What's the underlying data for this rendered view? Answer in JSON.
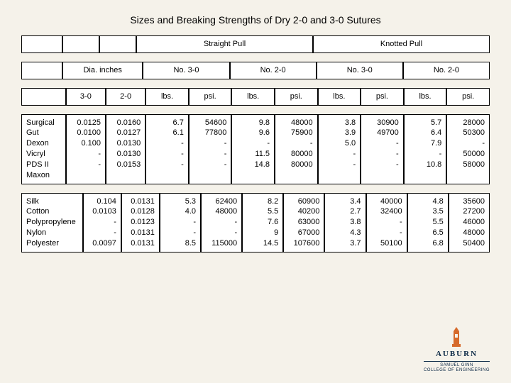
{
  "title": "Sizes and Breaking Strengths of Dry 2-0 and 3-0 Sutures",
  "headers": {
    "straight": "Straight Pull",
    "knotted": "Knotted Pull",
    "dia": "Dia. inches",
    "n30": "No. 3-0",
    "n20": "No. 2-0",
    "d30": "3-0",
    "d20": "2-0",
    "lbs": "lbs.",
    "psi": "psi."
  },
  "groupA": {
    "labels": "Surgical Gut\nDexon\nVicryl\nPDS II\nMaxon",
    "d30": "0.0125\n0.0100\n0.100\n-\n-",
    "d20": "0.0160\n0.0127\n0.0130\n0.0130\n0.0153",
    "s30lbs": "6.7\n6.1\n-\n-\n-",
    "s30psi": "54600\n77800\n-\n-\n-",
    "s20lbs": "9.8\n9.6\n-\n11.5\n14.8",
    "s20psi": "48000\n75900\n-\n80000\n80000",
    "k30lbs": "3.8\n3.9\n5.0\n-\n-",
    "k30psi": "30900\n49700\n-\n-\n-",
    "k20lbs": "5.7\n6.4\n7.9\n-\n10.8",
    "k20psi": "28000\n50300\n-\n50000\n58000"
  },
  "groupB": {
    "labels": "Silk\nCotton\nPolypropylene\nNylon\nPolyester",
    "d30": "0.104\n0.0103\n-\n-\n0.0097",
    "d20": "0.0131\n0.0128\n0.0123\n0.0131\n0.0131",
    "s30lbs": "5.3\n4.0\n-\n-\n8.5",
    "s30psi": "62400\n48000\n-\n-\n115000",
    "s20lbs": "8.2\n5.5\n7.6\n9\n14.5",
    "s20psi": "60900\n40200\n63000\n67000\n107600",
    "k30lbs": "3.4\n2.7\n3.8\n4.3\n3.7",
    "k30psi": "40000\n32400\n-\n-\n50100",
    "k20lbs": "4.8\n3.5\n5.5\n6.5\n6.8",
    "k20psi": "35600\n27200\n46000\n48000\n50400"
  },
  "logo": {
    "name": "AUBURN",
    "sub": "SAMUEL GINN\nCOLLEGE OF ENGINEERING"
  }
}
